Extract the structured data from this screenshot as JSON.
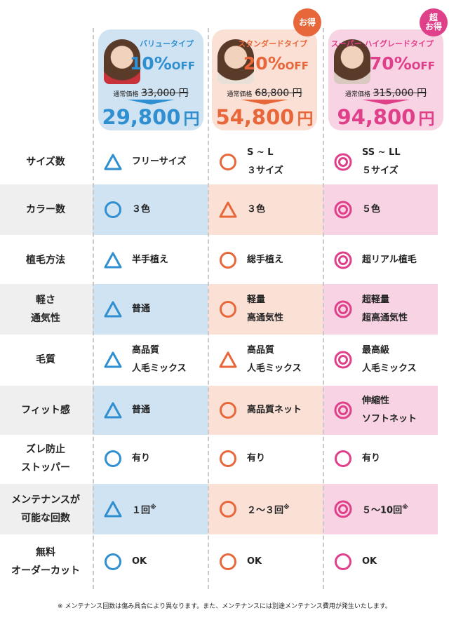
{
  "colors": {
    "value": "#2f8fd0",
    "value_bg": "#cfe3f3",
    "standard": "#e8673a",
    "standard_bg": "#fbe0d6",
    "super": "#e03f8a",
    "super_bg": "#f8d3e3",
    "row_gray": "#efefef"
  },
  "plans": [
    {
      "name": "バリュータイプ",
      "discount": "10%",
      "off": "OFF",
      "regular_label": "通常価格",
      "regular_price": "33,000 円",
      "price": "29,800",
      "yen": "円",
      "badge": ""
    },
    {
      "name": "スタンダードタイプ",
      "discount": "20%",
      "off": "OFF",
      "regular_label": "通常価格",
      "regular_price": "68,800 円",
      "price": "54,800",
      "yen": "円",
      "badge": "お得"
    },
    {
      "name": "スーパー\nハイグレードタイプ",
      "discount": "70%",
      "off": "OFF",
      "regular_label": "通常価格",
      "regular_price": "315,000 円",
      "price": "94,800",
      "yen": "円",
      "badge": "超\nお得"
    }
  ],
  "rows": [
    {
      "label": "サイズ数",
      "cells": [
        {
          "symbol": "triangle",
          "text": "フリーサイズ"
        },
        {
          "symbol": "circle",
          "text": "S ~ L\n３サイズ"
        },
        {
          "symbol": "double-circle",
          "text": "SS ~ LL\n５サイズ"
        }
      ]
    },
    {
      "label": "カラー数",
      "cells": [
        {
          "symbol": "circle",
          "text": "３色"
        },
        {
          "symbol": "triangle",
          "text": "３色"
        },
        {
          "symbol": "double-circle",
          "text": "５色"
        }
      ]
    },
    {
      "label": "植毛方法",
      "cells": [
        {
          "symbol": "triangle",
          "text": "半手植え"
        },
        {
          "symbol": "circle",
          "text": "総手植え"
        },
        {
          "symbol": "double-circle",
          "text": "超リアル植毛"
        }
      ]
    },
    {
      "label": "軽さ\n通気性",
      "cells": [
        {
          "symbol": "triangle",
          "text": "普通"
        },
        {
          "symbol": "circle",
          "text": "軽量\n高通気性"
        },
        {
          "symbol": "double-circle",
          "text": "超軽量\n超高通気性"
        }
      ]
    },
    {
      "label": "毛質",
      "cells": [
        {
          "symbol": "triangle",
          "text": "高品質\n人毛ミックス"
        },
        {
          "symbol": "triangle",
          "text": "高品質\n人毛ミックス"
        },
        {
          "symbol": "double-circle",
          "text": "最高級\n人毛ミックス"
        }
      ]
    },
    {
      "label": "フィット感",
      "cells": [
        {
          "symbol": "triangle",
          "text": "普通"
        },
        {
          "symbol": "circle",
          "text": "高品質ネット"
        },
        {
          "symbol": "double-circle",
          "text": "伸縮性\nソフトネット"
        }
      ]
    },
    {
      "label": "ズレ防止\nストッパー",
      "cells": [
        {
          "symbol": "circle",
          "text": "有り"
        },
        {
          "symbol": "circle",
          "text": "有り"
        },
        {
          "symbol": "circle",
          "text": "有り"
        }
      ]
    },
    {
      "label": "メンテナンスが\n可能な回数",
      "cells": [
        {
          "symbol": "triangle",
          "text": "１回",
          "mark": "※"
        },
        {
          "symbol": "circle",
          "text": "２～３回",
          "mark": "※"
        },
        {
          "symbol": "double-circle",
          "text": "５～10回",
          "mark": "※"
        }
      ]
    },
    {
      "label": "無料\nオーダーカット",
      "cells": [
        {
          "symbol": "circle",
          "text": "OK"
        },
        {
          "symbol": "circle",
          "text": "OK"
        },
        {
          "symbol": "circle",
          "text": "OK"
        }
      ]
    }
  ],
  "footnote": "※ メンテナンス回数は傷み具合により異なります。また、メンテナンスには別途メンテナンス費用が発生いたします。"
}
